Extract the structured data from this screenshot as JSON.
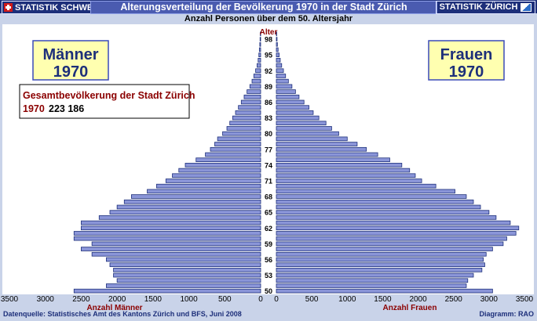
{
  "header": {
    "left_badge": "STATISTIK SCHWEIZ",
    "title": "Alterungsverteilung der Bevölkerung 1970 in der Stadt Zürich",
    "right_badge": "STATISTIK ZÜRICH",
    "subtitle": "Anzahl Personen über dem 50. Altersjahr"
  },
  "footer": {
    "source": "Datenquelle: Statistisches Amt des Kantons Zürich und BFS, Juni  2008",
    "credit": "Diagramm: RAO"
  },
  "colors": {
    "bar": "#8a95d8",
    "bar_edge": "#1d2f7a",
    "box_bg": "#ffffb0",
    "box_border": "#3a4ab8",
    "dark_text": "#1d2f7a",
    "red_text": "#8b0000"
  },
  "chart_data": {
    "type": "bar",
    "orientation": "horizontal-pyramid",
    "left_box": {
      "line1": "Männer",
      "line2": "1970"
    },
    "right_box": {
      "line1": "Frauen",
      "line2": "1970"
    },
    "info": {
      "title": "Gesamtbevölkerung der Stadt Zürich",
      "year": "1970",
      "value": "223 186"
    },
    "center_label": "Alter",
    "age_ticks": [
      "98",
      "95",
      "92",
      "89",
      "86",
      "83",
      "80",
      "77",
      "74",
      "71",
      "68",
      "65",
      "62",
      "59",
      "56",
      "53",
      "50"
    ],
    "left_axis_ticks": [
      "3500",
      "3000",
      "2500",
      "2000",
      "1500",
      "1000",
      "500",
      "0"
    ],
    "right_axis_ticks": [
      "0",
      "500",
      "1000",
      "1500",
      "2000",
      "2500",
      "3000",
      "3500"
    ],
    "left_axis_label": "Anzahl Männer",
    "right_axis_label": "Anzahl Frauen",
    "xlim": [
      0,
      3500
    ],
    "ages": [
      99,
      98,
      97,
      96,
      95,
      94,
      93,
      92,
      91,
      90,
      89,
      88,
      87,
      86,
      85,
      84,
      83,
      82,
      81,
      80,
      79,
      78,
      77,
      76,
      75,
      74,
      73,
      72,
      71,
      70,
      69,
      68,
      67,
      66,
      65,
      64,
      63,
      62,
      61,
      60,
      59,
      58,
      57,
      56,
      55,
      54,
      53,
      52,
      51,
      50
    ],
    "men": [
      5,
      8,
      12,
      18,
      25,
      35,
      50,
      70,
      95,
      120,
      150,
      190,
      230,
      270,
      310,
      350,
      390,
      430,
      470,
      530,
      600,
      640,
      700,
      770,
      900,
      1050,
      1140,
      1230,
      1320,
      1450,
      1580,
      1800,
      1900,
      2000,
      2100,
      2250,
      2500,
      2500,
      2600,
      2600,
      2350,
      2500,
      2350,
      2150,
      2100,
      2050,
      2050,
      2000,
      2150,
      2600
    ],
    "women": [
      5,
      10,
      15,
      25,
      40,
      55,
      75,
      100,
      130,
      170,
      220,
      270,
      320,
      390,
      460,
      520,
      600,
      700,
      780,
      880,
      1000,
      1140,
      1270,
      1430,
      1600,
      1770,
      1880,
      1960,
      2050,
      2250,
      2520,
      2680,
      2780,
      2880,
      3000,
      3100,
      3300,
      3420,
      3380,
      3250,
      3200,
      3050,
      2960,
      2920,
      2940,
      2900,
      2780,
      2700,
      2680,
      3050
    ]
  }
}
